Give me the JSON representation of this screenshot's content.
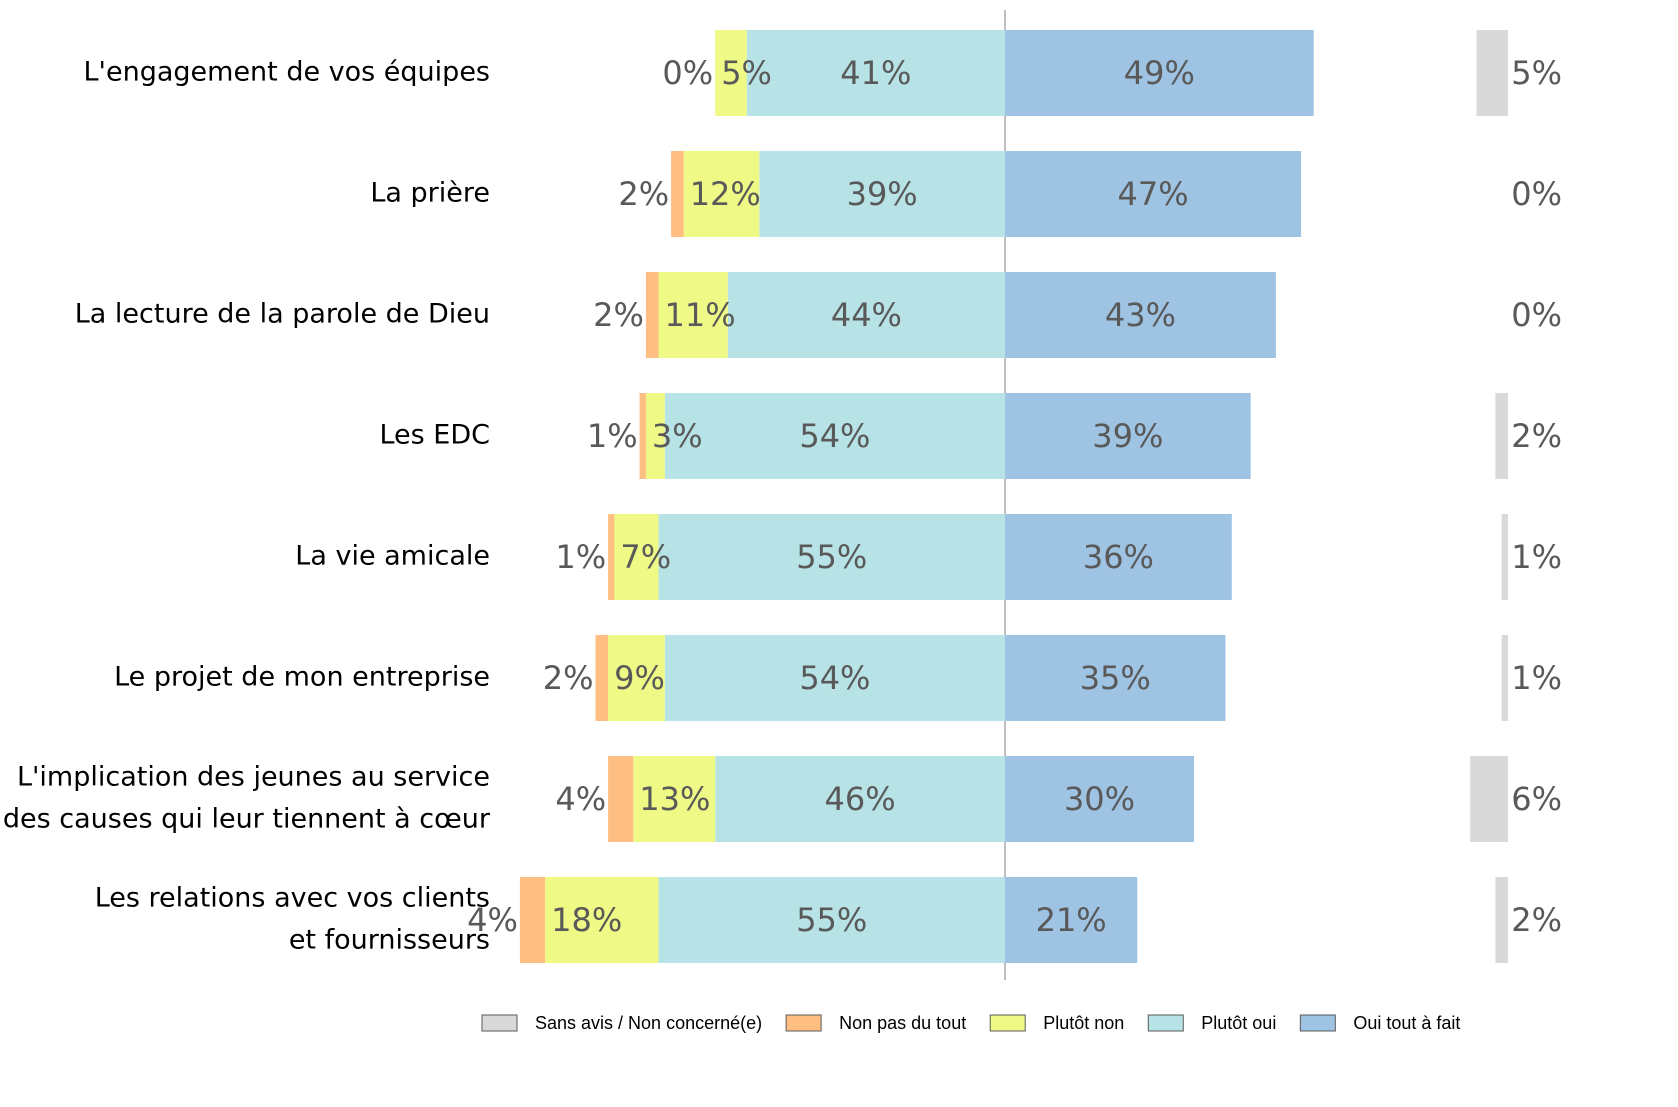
{
  "chart_data": {
    "type": "diverging-bar",
    "categories": [
      [
        "L'engagement de vos équipes"
      ],
      [
        "La prière"
      ],
      [
        "La lecture de la parole de Dieu"
      ],
      [
        "Les EDC"
      ],
      [
        "La vie amicale"
      ],
      [
        "Le projet de mon entreprise"
      ],
      [
        "L'implication des jeunes au service",
        "des causes qui leur tiennent à cœur"
      ],
      [
        "Les relations avec vos clients",
        "et fournisseurs"
      ]
    ],
    "series": [
      {
        "name": "Sans avis / Non concerné(e)",
        "color": "#d9d9d9",
        "values": [
          5,
          0,
          0,
          2,
          1,
          1,
          6,
          2
        ],
        "value_labels": [
          "5%",
          "0%",
          "0%",
          "2%",
          "1%",
          "1%",
          "6%",
          "2%"
        ]
      },
      {
        "name": "Non pas du tout",
        "color": "#ffbe82",
        "values": [
          0,
          2,
          2,
          1,
          1,
          2,
          4,
          4
        ],
        "value_labels": [
          "0%",
          "2%",
          "2%",
          "1%",
          "1%",
          "2%",
          "4%",
          "4%"
        ]
      },
      {
        "name": "Plutôt non",
        "color": "#eff985",
        "values": [
          5,
          12,
          11,
          3,
          7,
          9,
          13,
          18
        ],
        "value_labels": [
          "5%",
          "12%",
          "11%",
          "3%",
          "7%",
          "9%",
          "13%",
          "18%"
        ]
      },
      {
        "name": "Plutôt oui",
        "color": "#b7e3e7",
        "values": [
          41,
          39,
          44,
          54,
          55,
          54,
          46,
          55
        ],
        "value_labels": [
          "41%",
          "39%",
          "44%",
          "54%",
          "55%",
          "54%",
          "46%",
          "55%"
        ]
      },
      {
        "name": "Oui tout à fait",
        "color": "#9fc3e2",
        "values": [
          49,
          47,
          43,
          39,
          36,
          35,
          30,
          21
        ],
        "value_labels": [
          "49%",
          "47%",
          "43%",
          "39%",
          "36%",
          "35%",
          "30%",
          "21%"
        ]
      }
    ]
  }
}
